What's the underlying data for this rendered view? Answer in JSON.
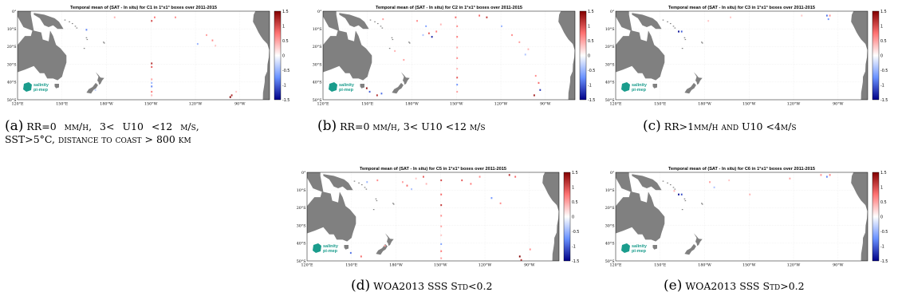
{
  "chart_data": [
    {
      "type": "heatmap",
      "title": "Temporal mean of (SAT - In situ) for C1 in 1°x1° boxes over 2011-2015",
      "x_ticks": [
        "120°E",
        "150°E",
        "180°W",
        "150°W",
        "120°W",
        "90°W"
      ],
      "y_ticks": [
        "0°",
        "10°S",
        "20°S",
        "30°S",
        "40°S",
        "50°S"
      ],
      "colorbar_ticks": [
        "1.5",
        "1",
        "0.5",
        "0",
        "-0.5",
        "-1",
        "-1.5"
      ],
      "clim": [
        -1.5,
        1.5
      ],
      "caption_label": "(a)",
      "caption_line1": "RR=0 mm/h, 3< U10 <12 m/s,",
      "caption_line2": "SST>5°C, distance to coast > 800 km",
      "cells": [
        {
          "lon": 166,
          "lat": -10,
          "v": -0.8
        },
        {
          "lon": 185,
          "lat": -3,
          "v": 0.4
        },
        {
          "lon": 210,
          "lat": -5,
          "v": 1.0
        },
        {
          "lon": 212,
          "lat": -3,
          "v": 0.7
        },
        {
          "lon": 226,
          "lat": -3,
          "v": 0.6
        },
        {
          "lon": 241,
          "lat": -18,
          "v": -0.5
        },
        {
          "lon": 247,
          "lat": -13,
          "v": 0.5
        },
        {
          "lon": 251,
          "lat": -16,
          "v": 0.6
        },
        {
          "lon": 253,
          "lat": -19,
          "v": 0.3
        },
        {
          "lon": 210,
          "lat": -29,
          "v": 1.2
        },
        {
          "lon": 210,
          "lat": -31,
          "v": 0.9
        },
        {
          "lon": 210,
          "lat": -38,
          "v": 0.5
        },
        {
          "lon": 210,
          "lat": -40,
          "v": -0.5
        },
        {
          "lon": 210,
          "lat": -42,
          "v": -0.8
        },
        {
          "lon": 210,
          "lat": -45,
          "v": 0.7
        },
        {
          "lon": 210,
          "lat": -47,
          "v": 0.4
        },
        {
          "lon": 263,
          "lat": -48,
          "v": 1.5
        },
        {
          "lon": 264,
          "lat": -47,
          "v": 1.2
        },
        {
          "lon": 267,
          "lat": -45,
          "v": 0.3
        },
        {
          "lon": 172,
          "lat": -44,
          "v": -0.3
        }
      ]
    },
    {
      "type": "heatmap",
      "title": "Temporal mean of (SAT - In situ) for C2 in 1°x1° boxes over 2011-2015",
      "x_ticks": [
        "120°E",
        "150°E",
        "180°W",
        "150°W",
        "120°W",
        "90°W"
      ],
      "y_ticks": [
        "0°",
        "10°S",
        "20°S",
        "30°S",
        "40°S",
        "50°S"
      ],
      "colorbar_ticks": [
        "1.5",
        "1",
        "0.5",
        "0",
        "-0.5",
        "-1",
        "-1.5"
      ],
      "clim": [
        -1.5,
        1.5
      ],
      "caption_label": "(b)",
      "caption_line1": "RR=0 mm/h, 3< U10 <12 m/s",
      "caption_line2": "",
      "cells": [
        {
          "lon": 160,
          "lat": -4,
          "v": 0.5
        },
        {
          "lon": 183,
          "lat": -5,
          "v": 0.6
        },
        {
          "lon": 189,
          "lat": -8,
          "v": -0.6
        },
        {
          "lon": 191,
          "lat": -12,
          "v": 0.9
        },
        {
          "lon": 193,
          "lat": -14,
          "v": -1.3
        },
        {
          "lon": 196,
          "lat": -11,
          "v": 0.7
        },
        {
          "lon": 199,
          "lat": -7,
          "v": 0.4
        },
        {
          "lon": 187,
          "lat": -13,
          "v": -0.4
        },
        {
          "lon": 209,
          "lat": -3,
          "v": 0.8
        },
        {
          "lon": 210,
          "lat": -8,
          "v": 0.6
        },
        {
          "lon": 210,
          "lat": -14,
          "v": 0.7
        },
        {
          "lon": 210,
          "lat": -20,
          "v": 0.5
        },
        {
          "lon": 210,
          "lat": -26,
          "v": 0.6
        },
        {
          "lon": 210,
          "lat": -32,
          "v": 0.4
        },
        {
          "lon": 210,
          "lat": -37,
          "v": 0.9
        },
        {
          "lon": 210,
          "lat": -41,
          "v": -0.7
        },
        {
          "lon": 210,
          "lat": -45,
          "v": 0.5
        },
        {
          "lon": 225,
          "lat": -2,
          "v": 0.8
        },
        {
          "lon": 230,
          "lat": -3,
          "v": 1.1
        },
        {
          "lon": 240,
          "lat": -8,
          "v": -0.5
        },
        {
          "lon": 247,
          "lat": -13,
          "v": 0.6
        },
        {
          "lon": 252,
          "lat": -17,
          "v": 0.5
        },
        {
          "lon": 258,
          "lat": -21,
          "v": 0.4
        },
        {
          "lon": 256,
          "lat": -24,
          "v": -0.4
        },
        {
          "lon": 263,
          "lat": -36,
          "v": 0.6
        },
        {
          "lon": 265,
          "lat": -40,
          "v": 0.8
        },
        {
          "lon": 266,
          "lat": -44,
          "v": -1.2
        },
        {
          "lon": 262,
          "lat": -47,
          "v": 1.3
        },
        {
          "lon": 149,
          "lat": -43,
          "v": 1.4
        },
        {
          "lon": 151,
          "lat": -45,
          "v": -1.0
        },
        {
          "lon": 156,
          "lat": -47,
          "v": 1.2
        },
        {
          "lon": 159,
          "lat": -46,
          "v": -0.9
        },
        {
          "lon": 174,
          "lat": -27,
          "v": 0.5
        },
        {
          "lon": 168,
          "lat": -22,
          "v": 0.4
        }
      ]
    },
    {
      "type": "heatmap",
      "title": "Temporal mean of (SAT - In situ) for C3 in 1°x1° boxes over 2011-2015",
      "x_ticks": [
        "120°E",
        "150°E",
        "180°W",
        "150°W",
        "120°W",
        "90°W"
      ],
      "y_ticks": [
        "0°",
        "10°S",
        "20°S",
        "30°S",
        "40°S",
        "50°S"
      ],
      "colorbar_ticks": [
        "1.5",
        "1",
        "0.5",
        "0",
        "-0.5",
        "-1",
        "-1.5"
      ],
      "clim": [
        -1.5,
        1.5
      ],
      "caption_label": "(c)",
      "caption_line1": "RR>1mm/h and U10 <4m/s",
      "caption_line2": "",
      "cells": [
        {
          "lon": 162,
          "lat": -11,
          "v": -1.4
        },
        {
          "lon": 164,
          "lat": -11,
          "v": -1.0
        },
        {
          "lon": 182,
          "lat": -5,
          "v": 0.3
        },
        {
          "lon": 197,
          "lat": -3,
          "v": 0.3
        },
        {
          "lon": 262,
          "lat": -2,
          "v": -0.9
        },
        {
          "lon": 263,
          "lat": -4,
          "v": -0.7
        },
        {
          "lon": 264,
          "lat": -2,
          "v": 0.6
        },
        {
          "lon": 245,
          "lat": -2,
          "v": 0.3
        }
      ]
    },
    {
      "type": "heatmap",
      "title": "Temporal mean of (SAT - In situ) for C5 in 1°x1° boxes over 2011-2015",
      "x_ticks": [
        "120°E",
        "150°E",
        "180°W",
        "150°W",
        "120°W",
        "90°W"
      ],
      "y_ticks": [
        "0°",
        "10°S",
        "20°S",
        "30°S",
        "40°S",
        "50°S"
      ],
      "colorbar_ticks": [
        "1.5",
        "1",
        "0.5",
        "0",
        "-0.5",
        "-1",
        "-1.5"
      ],
      "clim": [
        -1.5,
        1.5
      ],
      "caption_label": "(d)",
      "caption_line1": "WOA2013 SSS Std<0.2",
      "caption_line2": "",
      "cells": [
        {
          "lon": 160,
          "lat": -5,
          "v": -0.5
        },
        {
          "lon": 167,
          "lat": -4,
          "v": 0.6
        },
        {
          "lon": 184,
          "lat": -5,
          "v": 0.5
        },
        {
          "lon": 187,
          "lat": -7,
          "v": 0.8
        },
        {
          "lon": 190,
          "lat": -9,
          "v": -0.4
        },
        {
          "lon": 193,
          "lat": -3,
          "v": 0.3
        },
        {
          "lon": 198,
          "lat": -2,
          "v": 0.9
        },
        {
          "lon": 200,
          "lat": -6,
          "v": 0.4
        },
        {
          "lon": 210,
          "lat": -4,
          "v": 1.0
        },
        {
          "lon": 210,
          "lat": -12,
          "v": 0.8
        },
        {
          "lon": 210,
          "lat": -18,
          "v": 1.1
        },
        {
          "lon": 210,
          "lat": -24,
          "v": 0.6
        },
        {
          "lon": 210,
          "lat": -30,
          "v": 0.5
        },
        {
          "lon": 210,
          "lat": -35,
          "v": 0.3
        },
        {
          "lon": 210,
          "lat": -40,
          "v": -0.6
        },
        {
          "lon": 210,
          "lat": -44,
          "v": 0.7
        },
        {
          "lon": 210,
          "lat": -48,
          "v": 0.5
        },
        {
          "lon": 224,
          "lat": -4,
          "v": 0.9
        },
        {
          "lon": 230,
          "lat": -6,
          "v": 0.7
        },
        {
          "lon": 236,
          "lat": -2,
          "v": 0.6
        },
        {
          "lon": 244,
          "lat": -14,
          "v": -0.7
        },
        {
          "lon": 250,
          "lat": -17,
          "v": 0.6
        },
        {
          "lon": 256,
          "lat": -1,
          "v": 1.2
        },
        {
          "lon": 260,
          "lat": -2,
          "v": 0.8
        },
        {
          "lon": 263,
          "lat": -47,
          "v": 1.5
        },
        {
          "lon": 264,
          "lat": -49,
          "v": 1.1
        },
        {
          "lon": 270,
          "lat": -43,
          "v": 0.6
        },
        {
          "lon": 149,
          "lat": -45,
          "v": -0.9
        },
        {
          "lon": 156,
          "lat": -47,
          "v": 0.8
        },
        {
          "lon": 172,
          "lat": -41,
          "v": 0.5
        }
      ]
    },
    {
      "type": "heatmap",
      "title": "Temporal mean of (SAT - In situ) for C6 in 1°x1° boxes over 2011-2015",
      "x_ticks": [
        "120°E",
        "150°E",
        "180°W",
        "150°W",
        "120°W",
        "90°W"
      ],
      "y_ticks": [
        "0°",
        "10°S",
        "20°S",
        "30°S",
        "40°S",
        "50°S"
      ],
      "colorbar_ticks": [
        "1.5",
        "1",
        "0.5",
        "0",
        "-0.5",
        "-1",
        "-1.5"
      ],
      "clim": [
        -1.5,
        1.5
      ],
      "caption_label": "(e)",
      "caption_line1": "WOA2013 SSS Std>0.2",
      "caption_line2": "",
      "cells": [
        {
          "lon": 162,
          "lat": -12,
          "v": -1.4
        },
        {
          "lon": 164,
          "lat": -12,
          "v": -1.1
        },
        {
          "lon": 159,
          "lat": -10,
          "v": 0.4
        },
        {
          "lon": 183,
          "lat": -5,
          "v": 0.5
        },
        {
          "lon": 186,
          "lat": -8,
          "v": -0.4
        },
        {
          "lon": 196,
          "lat": -4,
          "v": 0.3
        },
        {
          "lon": 210,
          "lat": -12,
          "v": 0.4
        },
        {
          "lon": 237,
          "lat": -3,
          "v": 0.5
        },
        {
          "lon": 258,
          "lat": -1,
          "v": 0.6
        },
        {
          "lon": 262,
          "lat": -2,
          "v": -0.8
        },
        {
          "lon": 264,
          "lat": -1,
          "v": 0.7
        }
      ]
    }
  ],
  "logo": {
    "line1": "salinity",
    "line2": "pi-mep"
  },
  "colors": {
    "land": "#808080",
    "ocean": "#ffffff"
  }
}
